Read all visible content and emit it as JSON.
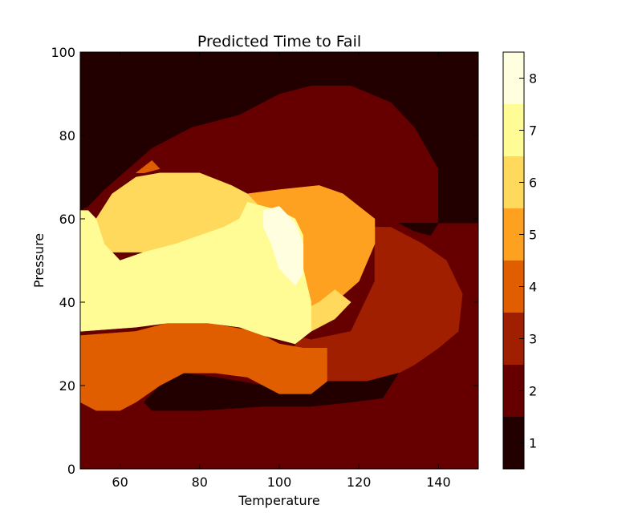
{
  "chart_data": {
    "type": "contourf",
    "title": "Predicted Time to Fail",
    "xlabel": "Temperature",
    "ylabel": "Pressure",
    "xlim": [
      50,
      150
    ],
    "ylim": [
      0,
      100
    ],
    "x_ticks": [
      "60",
      "80",
      "100",
      "120",
      "140"
    ],
    "y_ticks": [
      "0",
      "20",
      "40",
      "60",
      "80",
      "100"
    ],
    "grid": false,
    "colorbar": {
      "range": [
        0.5,
        8.5
      ],
      "levels": [
        {
          "value": "1",
          "color": "#220000"
        },
        {
          "value": "2",
          "color": "#660000"
        },
        {
          "value": "3",
          "color": "#a01f00"
        },
        {
          "value": "4",
          "color": "#e05e00"
        },
        {
          "value": "5",
          "color": "#ffa120"
        },
        {
          "value": "6",
          "color": "#ffd95b"
        },
        {
          "value": "7",
          "color": "#fffc96"
        },
        {
          "value": "8",
          "color": "#ffffe0"
        }
      ]
    },
    "regions": [
      {
        "level": 2,
        "polygon": [
          [
            50,
            0
          ],
          [
            150,
            0
          ],
          [
            150,
            59
          ],
          [
            144,
            59
          ],
          [
            140,
            56
          ],
          [
            138,
            52
          ],
          [
            136,
            54
          ],
          [
            132,
            57
          ],
          [
            126,
            58
          ],
          [
            124,
            56
          ],
          [
            110,
            52
          ],
          [
            100,
            52
          ],
          [
            92,
            53
          ],
          [
            80,
            53
          ],
          [
            76,
            50
          ],
          [
            70,
            42
          ],
          [
            64,
            40
          ],
          [
            60,
            40
          ],
          [
            58,
            39
          ],
          [
            54,
            38
          ],
          [
            50,
            45
          ],
          [
            50,
            58
          ],
          [
            52,
            62
          ],
          [
            56,
            68
          ],
          [
            64,
            76
          ],
          [
            70,
            80
          ],
          [
            80,
            82
          ],
          [
            88,
            84
          ],
          [
            96,
            90
          ],
          [
            108,
            92
          ],
          [
            118,
            92
          ],
          [
            126,
            90
          ],
          [
            134,
            82
          ],
          [
            140,
            71
          ],
          [
            140,
            59
          ],
          [
            150,
            59
          ]
        ]
      },
      {
        "level": 2,
        "polygon": [
          [
            64,
            75
          ],
          [
            68,
            80
          ],
          [
            76,
            83
          ],
          [
            86,
            85
          ],
          [
            90,
            86
          ],
          [
            96,
            90
          ],
          [
            100,
            92
          ],
          [
            118,
            92
          ],
          [
            124,
            91
          ],
          [
            132,
            86
          ],
          [
            138,
            76
          ],
          [
            140,
            66
          ],
          [
            140,
            58
          ],
          [
            136,
            59
          ],
          [
            132,
            60
          ],
          [
            124,
            60
          ],
          [
            116,
            62
          ],
          [
            104,
            64
          ],
          [
            96,
            66
          ],
          [
            86,
            68
          ],
          [
            74,
            71
          ],
          [
            66,
            73
          ]
        ]
      },
      {
        "level": 3,
        "polygon": [
          [
            104,
            32
          ],
          [
            108,
            31
          ],
          [
            118,
            33
          ],
          [
            124,
            45
          ],
          [
            124,
            58
          ],
          [
            128,
            58
          ],
          [
            136,
            54
          ],
          [
            142,
            50
          ],
          [
            146,
            42
          ],
          [
            145,
            33
          ],
          [
            140,
            29
          ],
          [
            134,
            25
          ],
          [
            130,
            23
          ],
          [
            126,
            19
          ],
          [
            120,
            17
          ],
          [
            108,
            17
          ],
          [
            104,
            22
          ],
          [
            104,
            30
          ]
        ]
      },
      {
        "level": 1,
        "polygon": [
          [
            50,
            62
          ],
          [
            52,
            63
          ],
          [
            56,
            67
          ],
          [
            62,
            72
          ],
          [
            68,
            77
          ],
          [
            78,
            82
          ],
          [
            90,
            85
          ],
          [
            100,
            90
          ],
          [
            108,
            92
          ],
          [
            118,
            92
          ],
          [
            128,
            88
          ],
          [
            134,
            82
          ],
          [
            140,
            72
          ],
          [
            140,
            59
          ],
          [
            150,
            59
          ],
          [
            150,
            100
          ],
          [
            50,
            100
          ]
        ]
      },
      {
        "level": 1,
        "polygon": [
          [
            130,
            59
          ],
          [
            136,
            59
          ],
          [
            140,
            59
          ],
          [
            138,
            56
          ],
          [
            134,
            57
          ]
        ]
      },
      {
        "level": 1,
        "polygon": [
          [
            68,
            14
          ],
          [
            80,
            14
          ],
          [
            96,
            15
          ],
          [
            108,
            15
          ],
          [
            118,
            16
          ],
          [
            126,
            17
          ],
          [
            130,
            23
          ],
          [
            122,
            21
          ],
          [
            108,
            21
          ],
          [
            96,
            20
          ],
          [
            84,
            22
          ],
          [
            76,
            23
          ],
          [
            70,
            20
          ],
          [
            66,
            16
          ]
        ]
      },
      {
        "level": 4,
        "polygon": [
          [
            50,
            16
          ],
          [
            54,
            14
          ],
          [
            60,
            14
          ],
          [
            64,
            16
          ],
          [
            70,
            20
          ],
          [
            76,
            23
          ],
          [
            84,
            23
          ],
          [
            92,
            22
          ],
          [
            100,
            18
          ],
          [
            108,
            18
          ],
          [
            112,
            21
          ],
          [
            112,
            29
          ],
          [
            106,
            29
          ],
          [
            100,
            30
          ],
          [
            94,
            33
          ],
          [
            82,
            35
          ],
          [
            72,
            35
          ],
          [
            64,
            33
          ],
          [
            50,
            32
          ]
        ]
      },
      {
        "level": 4,
        "polygon": [
          [
            64,
            71
          ],
          [
            68,
            74
          ],
          [
            70,
            72
          ],
          [
            66,
            71
          ]
        ]
      },
      {
        "level": 5,
        "polygon": [
          [
            92,
            66
          ],
          [
            100,
            67
          ],
          [
            110,
            68
          ],
          [
            116,
            66
          ],
          [
            124,
            60
          ],
          [
            124,
            54
          ],
          [
            120,
            45
          ],
          [
            114,
            40
          ],
          [
            108,
            38
          ],
          [
            106,
            45
          ],
          [
            104,
            53
          ],
          [
            100,
            57
          ],
          [
            96,
            62
          ]
        ]
      },
      {
        "level": 6,
        "polygon": [
          [
            54,
            60
          ],
          [
            58,
            66
          ],
          [
            64,
            70
          ],
          [
            70,
            71
          ],
          [
            80,
            71
          ],
          [
            88,
            68
          ],
          [
            92,
            66
          ],
          [
            96,
            62
          ],
          [
            100,
            57
          ],
          [
            98,
            60
          ],
          [
            92,
            58
          ],
          [
            86,
            58
          ],
          [
            80,
            56
          ],
          [
            74,
            54
          ],
          [
            66,
            52
          ],
          [
            58,
            52
          ],
          [
            54,
            56
          ]
        ]
      },
      {
        "level": 6,
        "polygon": [
          [
            104,
            32
          ],
          [
            108,
            33
          ],
          [
            114,
            36
          ],
          [
            118,
            40
          ],
          [
            114,
            43
          ],
          [
            110,
            40
          ],
          [
            106,
            38
          ]
        ]
      },
      {
        "level": 7,
        "polygon": [
          [
            50,
            33
          ],
          [
            64,
            34
          ],
          [
            72,
            35
          ],
          [
            82,
            35
          ],
          [
            90,
            34
          ],
          [
            96,
            32
          ],
          [
            104,
            30
          ],
          [
            108,
            33
          ],
          [
            108,
            40
          ],
          [
            106,
            48
          ],
          [
            106,
            56
          ],
          [
            104,
            60
          ],
          [
            100,
            62
          ],
          [
            96,
            63
          ],
          [
            92,
            64
          ],
          [
            90,
            60
          ],
          [
            86,
            58
          ],
          [
            80,
            56
          ],
          [
            74,
            54
          ],
          [
            66,
            52
          ],
          [
            60,
            50
          ],
          [
            56,
            54
          ],
          [
            54,
            60
          ],
          [
            52,
            62
          ],
          [
            50,
            62
          ]
        ]
      },
      {
        "level": 8,
        "polygon": [
          [
            96,
            62
          ],
          [
            100,
            63
          ],
          [
            104,
            59
          ],
          [
            106,
            54
          ],
          [
            106,
            47
          ],
          [
            104,
            44
          ],
          [
            100,
            48
          ],
          [
            98,
            54
          ],
          [
            96,
            58
          ]
        ]
      }
    ]
  }
}
